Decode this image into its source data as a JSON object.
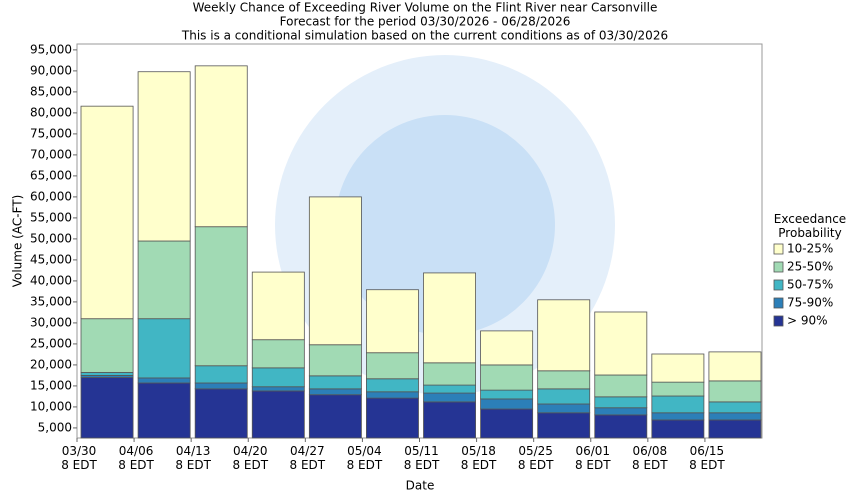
{
  "chart_data": {
    "type": "floating_bar",
    "title_lines": [
      "Weekly Chance of Exceeding River Volume on the Flint River near Carsonville",
      "Forecast for the period 03/30/2026 - 06/28/2026",
      "This is a conditional simulation based on the current conditions as of 03/30/2026"
    ],
    "x_label": "Date",
    "y_label": "Volume (AC-FT)",
    "legend_title": "Exceedance\nProbability",
    "categories": [
      "03/30\n8 EDT",
      "04/06\n8 EDT",
      "04/13\n8 EDT",
      "04/20\n8 EDT",
      "04/27\n8 EDT",
      "05/04\n8 EDT",
      "05/11\n8 EDT",
      "05/18\n8 EDT",
      "05/25\n8 EDT",
      "06/01\n8 EDT",
      "06/08\n8 EDT",
      "06/15\n8 EDT"
    ],
    "series": [
      {
        "name": "> 90%",
        "color": "#253494",
        "values": [
          17000,
          15700,
          14300,
          13800,
          12900,
          12100,
          11200,
          9500,
          8600,
          8100,
          6900,
          6900
        ]
      },
      {
        "name": "75-90%",
        "color": "#2c7fb8",
        "values": [
          17500,
          16900,
          15700,
          14800,
          14300,
          13600,
          13300,
          11900,
          10700,
          9800,
          8600,
          8600
        ]
      },
      {
        "name": "50-75%",
        "color": "#41b6c4",
        "values": [
          18200,
          31000,
          19800,
          19300,
          17400,
          16700,
          15200,
          14000,
          14300,
          12400,
          12600,
          11200
        ]
      },
      {
        "name": "25-50%",
        "color": "#a1dab4",
        "values": [
          31000,
          49500,
          52900,
          26000,
          24800,
          22900,
          20500,
          20000,
          18600,
          17600,
          15900,
          16200
        ]
      },
      {
        "name": "10-25%",
        "color": "#ffffcc",
        "values": [
          81600,
          89800,
          91200,
          42100,
          60000,
          37900,
          41900,
          28100,
          35500,
          32600,
          22600,
          23100
        ]
      }
    ],
    "ylim": [
      2600,
      96400
    ],
    "yticks": [
      {
        "value": 5000,
        "label": "5,000"
      },
      {
        "value": 10000,
        "label": "10,000"
      },
      {
        "value": 15000,
        "label": "15,000"
      },
      {
        "value": 20000,
        "label": "20,000"
      },
      {
        "value": 25000,
        "label": "25,000"
      },
      {
        "value": 30000,
        "label": "30,000"
      },
      {
        "value": 35000,
        "label": "35,000"
      },
      {
        "value": 40000,
        "label": "40,000"
      },
      {
        "value": 45000,
        "label": "45,000"
      },
      {
        "value": 50000,
        "label": "50,000"
      },
      {
        "value": 55000,
        "label": "55,000"
      },
      {
        "value": 60000,
        "label": "60,000"
      },
      {
        "value": 65000,
        "label": "65,000"
      },
      {
        "value": 70000,
        "label": "70,000"
      },
      {
        "value": 75000,
        "label": "75,000"
      },
      {
        "value": 80000,
        "label": "80,000"
      },
      {
        "value": 85000,
        "label": "85,000"
      },
      {
        "value": 90000,
        "label": "90,000"
      },
      {
        "value": 95000,
        "label": "95,000"
      }
    ],
    "grid": false
  }
}
